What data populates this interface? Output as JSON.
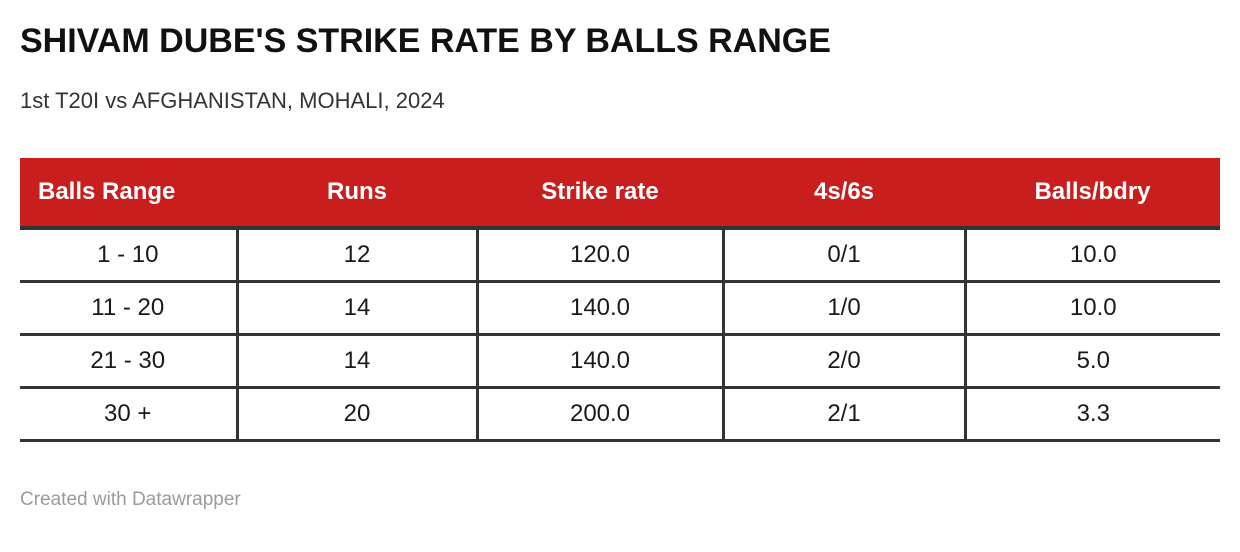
{
  "title": "SHIVAM DUBE'S STRIKE RATE BY BALLS RANGE",
  "subtitle": "1st T20I vs AFGHANISTAN, MOHALI, 2024",
  "footer": {
    "attribution": "Created with Datawrapper"
  },
  "colors": {
    "header_bg": "#c81e1e",
    "header_text": "#ffffff",
    "border": "#333333",
    "title_text": "#111111",
    "subtitle_text": "#333333",
    "cell_text": "#1a1a1a",
    "footer_text": "#9b9b9b",
    "background": "#ffffff"
  },
  "chart_data": {
    "type": "table",
    "title": "SHIVAM DUBE'S STRIKE RATE BY BALLS RANGE",
    "subtitle": "1st T20I vs AFGHANISTAN, MOHALI, 2024",
    "columns": [
      "Balls Range",
      "Runs",
      "Strike rate",
      "4s/6s",
      "Balls/bdry"
    ],
    "rows": [
      [
        "1 - 10",
        "12",
        "120.0",
        "0/1",
        "10.0"
      ],
      [
        "11 - 20",
        "14",
        "140.0",
        "1/0",
        "10.0"
      ],
      [
        "21 - 30",
        "14",
        "140.0",
        "2/0",
        "5.0"
      ],
      [
        "30 +",
        "20",
        "200.0",
        "2/1",
        "3.3"
      ]
    ],
    "layout": {
      "header_alignment": [
        "left",
        "center",
        "center",
        "center",
        "center"
      ],
      "body_alignment": "center",
      "grid": "row-and-column-separators"
    }
  }
}
